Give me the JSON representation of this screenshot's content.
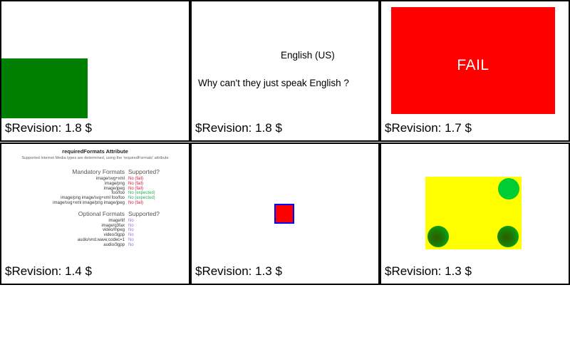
{
  "colors": {
    "cell_border": "#000000",
    "green_rect": "#008000",
    "fail_rect": "#ff0000",
    "fail_text": "#ffffff",
    "red_square_fill": "#ff0000",
    "red_square_border": "#0000ff",
    "yellow_rect": "#ffff00",
    "flat_circle_green": "#00cc33",
    "gradient_circle_center": "#2e5c00",
    "gradient_circle_edge": "#00c424",
    "status_fail": "#dc143c",
    "status_expected": "#2faa5c",
    "status_no": "#9370db"
  },
  "panels": [
    {
      "name": "green-rect-test",
      "revision": "$Revision: 1.8 $"
    },
    {
      "name": "language-text-test",
      "line1": "English (US)",
      "line2": "Why can't they just speak English ?",
      "revision": "$Revision: 1.8 $"
    },
    {
      "name": "fail-test",
      "label": "FAIL",
      "revision": "$Revision: 1.7 $"
    },
    {
      "name": "required-formats-test",
      "title": "requiredFormats Attribute",
      "subtitle": "Supported Internet Media types are determined, using the 'requiredFormats' attribute",
      "mandatory": {
        "header_left": "Mandatory Formats",
        "header_right": "Supported?",
        "rows": [
          {
            "format": "image/svg+xml",
            "status": "No (fail)",
            "result": "fail"
          },
          {
            "format": "image/png",
            "status": "No (fail)",
            "result": "fail"
          },
          {
            "format": "image/jpeg",
            "status": "No (fail)",
            "result": "fail"
          },
          {
            "format": "foo/foo",
            "status": "No (expected)",
            "result": "expected"
          },
          {
            "format": "image/png image/svg+xml foo/foo",
            "status": "No (expected)",
            "result": "expected"
          },
          {
            "format": "image/svg+xml image/png image/jpeg",
            "status": "No (fail)",
            "result": "fail"
          }
        ]
      },
      "optional": {
        "header_left": "Optional Formats",
        "header_right": "Supported?",
        "rows": [
          {
            "format": "image/tif",
            "status": "No",
            "result": "no"
          },
          {
            "format": "image/g3fax",
            "status": "No",
            "result": "no"
          },
          {
            "format": "video/mpeg",
            "status": "No",
            "result": "no"
          },
          {
            "format": "video/3gpp",
            "status": "No",
            "result": "no"
          },
          {
            "format": "audio/vnd.wave;codec=1",
            "status": "No",
            "result": "no"
          },
          {
            "format": "audio/3gpp",
            "status": "No",
            "result": "no"
          }
        ]
      },
      "revision": "$Revision: 1.4 $"
    },
    {
      "name": "red-square-test",
      "revision": "$Revision: 1.3 $"
    },
    {
      "name": "yellow-circles-test",
      "revision": "$Revision: 1.3 $"
    }
  ]
}
